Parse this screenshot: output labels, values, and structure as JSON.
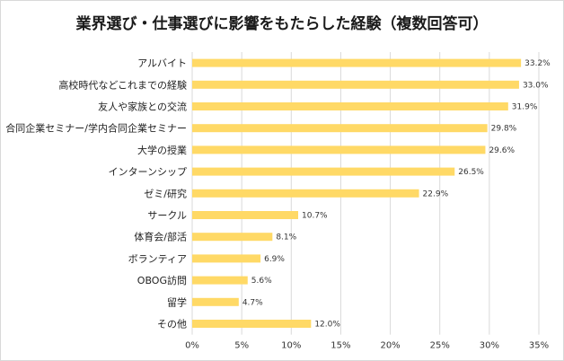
{
  "chart_data": {
    "type": "bar",
    "orientation": "horizontal",
    "title": "業界選び・仕事選びに影響をもたらした経験（複数回答可）",
    "categories": [
      "アルバイト",
      "高校時代などこれまでの経験",
      "友人や家族との交流",
      "合同企業セミナー/学内合同企業セミナー",
      "大学の授業",
      "インターンシップ",
      "ゼミ/研究",
      "サークル",
      "体育会/部活",
      "ボランティア",
      "OBOG訪問",
      "留学",
      "その他"
    ],
    "values": [
      33.2,
      33.0,
      31.9,
      29.8,
      29.6,
      26.5,
      22.9,
      10.7,
      8.1,
      6.9,
      5.6,
      4.7,
      12.0
    ],
    "value_labels": [
      "33.2%",
      "33.0%",
      "31.9%",
      "29.8%",
      "29.6%",
      "26.5%",
      "22.9%",
      "10.7%",
      "8.1%",
      "6.9%",
      "5.6%",
      "4.7%",
      "12.0%"
    ],
    "xlim": [
      0,
      35
    ],
    "xticks": [
      0,
      5,
      10,
      15,
      20,
      25,
      30,
      35
    ],
    "xtick_labels": [
      "0%",
      "5%",
      "10%",
      "15%",
      "20%",
      "25%",
      "30%",
      "35%"
    ],
    "xlabel": "",
    "ylabel": "",
    "grid": true,
    "bar_color": "#ffd966",
    "grid_color": "#d9d9d9"
  }
}
